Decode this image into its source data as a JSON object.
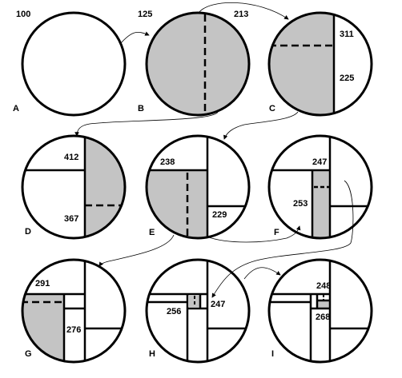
{
  "diagram": {
    "colors": {
      "shade": "#c4c4c4",
      "line": "#000000",
      "background": "#ffffff"
    },
    "panels": [
      {
        "label": "A",
        "numbers": [
          "100"
        ]
      },
      {
        "label": "B",
        "numbers": [
          "125",
          "213"
        ]
      },
      {
        "label": "C",
        "numbers": [
          "311",
          "225"
        ]
      },
      {
        "label": "D",
        "numbers": [
          "412",
          "367"
        ]
      },
      {
        "label": "E",
        "numbers": [
          "238",
          "229"
        ]
      },
      {
        "label": "F",
        "numbers": [
          "247",
          "253"
        ]
      },
      {
        "label": "G",
        "numbers": [
          "291",
          "276"
        ]
      },
      {
        "label": "H",
        "numbers": [
          "256",
          "247"
        ]
      },
      {
        "label": "I",
        "numbers": [
          "248",
          "268"
        ]
      }
    ]
  }
}
